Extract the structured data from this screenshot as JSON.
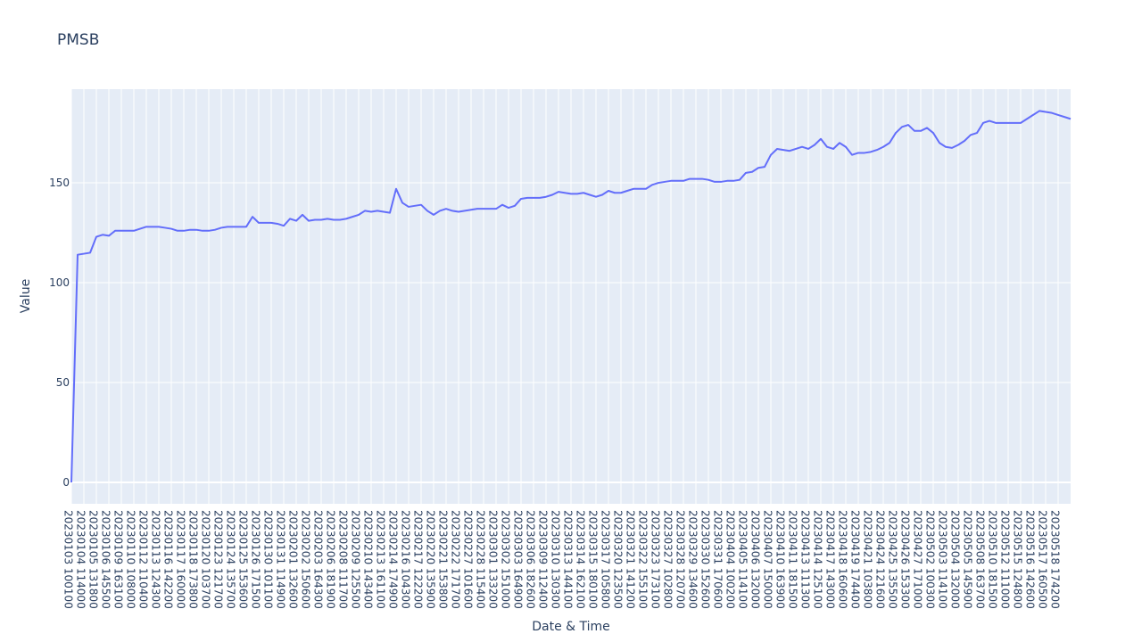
{
  "chart_data": {
    "type": "line",
    "title": "PMSB",
    "x_label": "Date & Time",
    "y_label": "Value",
    "categories": [
      "20230103 100100",
      null,
      "20230104 114000",
      null,
      "20230105 131800",
      null,
      "20230106 145500",
      null,
      "20230109 163100",
      null,
      "20230110 108000",
      null,
      "20230112 110400",
      null,
      "20230113 124300",
      null,
      "20230116 142200",
      null,
      "20230117 160000",
      null,
      "20230118 173800",
      null,
      "20230120 103700",
      null,
      "20230123 121700",
      null,
      "20230124 135700",
      null,
      "20230125 153600",
      null,
      "20230126 171500",
      null,
      "20230130 101100",
      null,
      "20230131 114900",
      null,
      "20230201 132600",
      null,
      "20230202 150600",
      null,
      "20230203 164300",
      null,
      "20230206 181900",
      null,
      "20230208 111700",
      null,
      "20230209 125500",
      null,
      "20230210 143400",
      null,
      "20230213 161100",
      null,
      "20230214 174900",
      null,
      "20230216 104300",
      null,
      "20230217 122200",
      null,
      "20230220 135900",
      null,
      "20230221 153800",
      null,
      "20230222 171700",
      null,
      "20230227 101600",
      null,
      "20230228 115400",
      null,
      "20230301 133200",
      null,
      "20230302 151000",
      null,
      "20230303 164900",
      null,
      "20230306 182600",
      null,
      "20230309 112400",
      null,
      "20230310 130300",
      null,
      "20230313 144100",
      null,
      "20230314 162100",
      null,
      "20230315 180100",
      null,
      "20230317 105800",
      null,
      "20230320 123500",
      null,
      "20230321 141200",
      null,
      "20230322 155100",
      null,
      "20230323 173100",
      null,
      "20230327 102800",
      null,
      "20230328 120700",
      null,
      "20230329 134600",
      null,
      "20230330 152600",
      null,
      "20230331 170600",
      null,
      "20230404 100200",
      null,
      "20230405 114100",
      null,
      "20230406 132000",
      null,
      "20230407 150000",
      null,
      "20230410 163900",
      null,
      "20230411 181500",
      null,
      "20230413 111300",
      null,
      "20230414 125100",
      null,
      "20230417 143000",
      null,
      "20230418 160600",
      null,
      "20230419 174400",
      null,
      "20230421 103800",
      null,
      "20230424 121600",
      null,
      "20230425 135500",
      null,
      "20230426 153300",
      null,
      "20230427 171000",
      null,
      "20230502 100300",
      null,
      "20230503 114100",
      null,
      "20230504 132000",
      null,
      "20230505 145900",
      null,
      "20230508 163700",
      null,
      "20230510 181500",
      null,
      "20230512 111000",
      null,
      "20230515 124800",
      null,
      "20230516 142600",
      null,
      "20230517 160500",
      null,
      "20230518 174200",
      null,
      null
    ],
    "values": [
      0,
      114,
      114.5,
      115,
      123,
      124,
      123.5,
      126,
      126,
      126,
      126,
      127,
      128,
      128,
      128,
      127.5,
      127,
      126,
      126,
      126.5,
      126.5,
      126,
      126,
      126.5,
      127.5,
      128,
      128,
      128,
      128,
      133,
      130,
      130,
      130,
      129.5,
      128.5,
      132,
      131,
      134,
      131,
      131.5,
      131.5,
      132,
      131.5,
      131.5,
      132,
      133,
      134,
      136,
      135.5,
      136,
      135.5,
      135,
      147,
      140,
      138,
      138.5,
      139,
      136,
      134,
      136,
      137,
      136,
      135.5,
      136,
      136.5,
      137,
      137,
      137,
      137,
      139,
      137.5,
      138.5,
      142,
      142.5,
      142.5,
      142.5,
      143,
      144,
      145.5,
      145,
      144.5,
      144.5,
      145,
      144,
      143,
      144,
      146,
      145,
      145,
      146,
      147,
      147,
      147,
      149,
      150,
      150.5,
      151,
      151,
      151,
      152,
      152,
      152,
      151.5,
      150.5,
      150.5,
      151,
      151,
      151.5,
      155,
      155.5,
      157.5,
      158,
      164,
      167,
      166.5,
      166,
      167,
      168,
      167,
      169,
      172,
      168,
      167,
      170,
      168,
      164,
      165,
      165,
      165.5,
      166.5,
      168,
      170,
      175,
      178,
      179,
      176,
      176,
      177.5,
      175,
      170,
      168,
      167.5,
      169,
      171,
      174,
      175,
      180,
      181,
      180,
      180,
      180,
      180,
      180,
      182,
      184,
      186,
      185.5,
      185,
      184,
      183,
      182
    ],
    "color": "#636efa",
    "ylim": [
      -10.7,
      196.9
    ],
    "yticks": [
      0,
      50,
      100,
      150
    ],
    "grid": true
  }
}
